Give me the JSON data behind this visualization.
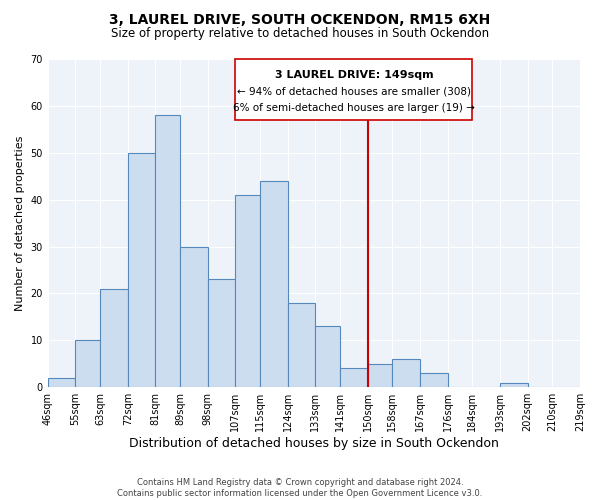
{
  "title": "3, LAUREL DRIVE, SOUTH OCKENDON, RM15 6XH",
  "subtitle": "Size of property relative to detached houses in South Ockendon",
  "xlabel": "Distribution of detached houses by size in South Ockendon",
  "ylabel": "Number of detached properties",
  "footer_line1": "Contains HM Land Registry data © Crown copyright and database right 2024.",
  "footer_line2": "Contains public sector information licensed under the Open Government Licence v3.0.",
  "bin_labels": [
    "46sqm",
    "55sqm",
    "63sqm",
    "72sqm",
    "81sqm",
    "89sqm",
    "98sqm",
    "107sqm",
    "115sqm",
    "124sqm",
    "133sqm",
    "141sqm",
    "150sqm",
    "158sqm",
    "167sqm",
    "176sqm",
    "184sqm",
    "193sqm",
    "202sqm",
    "210sqm",
    "219sqm"
  ],
  "bin_edges": [
    46,
    55,
    63,
    72,
    81,
    89,
    98,
    107,
    115,
    124,
    133,
    141,
    150,
    158,
    167,
    176,
    184,
    193,
    202,
    210,
    219
  ],
  "bar_heights": [
    2,
    10,
    21,
    50,
    58,
    30,
    23,
    41,
    44,
    18,
    13,
    4,
    5,
    6,
    3,
    0,
    0,
    1,
    0,
    0
  ],
  "bar_color": "#ccddf0",
  "bar_edge_color": "#5588bb",
  "reference_line_x": 150,
  "reference_line_color": "#cc0000",
  "annotation_title": "3 LAUREL DRIVE: 149sqm",
  "annotation_line1": "← 94% of detached houses are smaller (308)",
  "annotation_line2": "6% of semi-detached houses are larger (19) →",
  "annotation_box_edge_color": "#cc0000",
  "ylim": [
    0,
    70
  ],
  "yticks": [
    0,
    10,
    20,
    30,
    40,
    50,
    60,
    70
  ],
  "title_fontsize": 10,
  "subtitle_fontsize": 8.5,
  "xlabel_fontsize": 9,
  "ylabel_fontsize": 8,
  "tick_fontsize": 7,
  "annotation_title_fontsize": 8,
  "annotation_body_fontsize": 7.5,
  "footer_fontsize": 6
}
